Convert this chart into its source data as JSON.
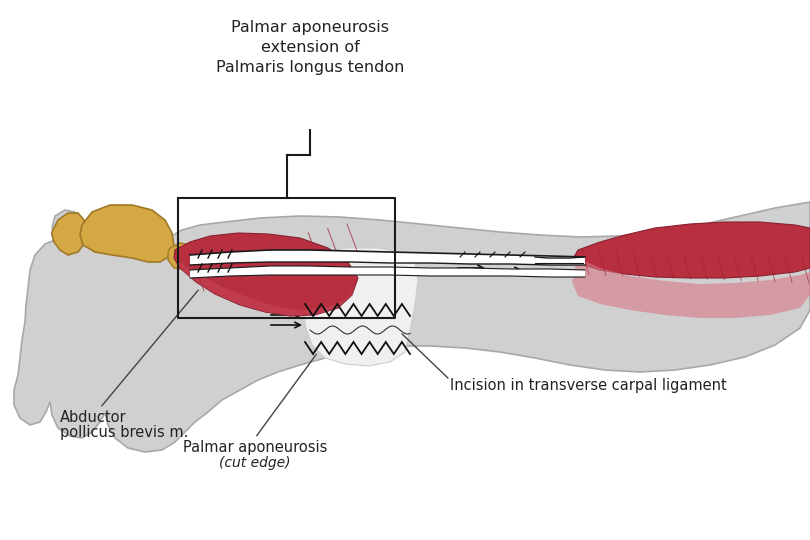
{
  "background_color": "#ffffff",
  "hand_fill": "#d0d0d0",
  "hand_fill2": "#c8c8c8",
  "hand_stroke": "#a8a8a8",
  "bone_fill": "#d4a843",
  "bone_stroke": "#a07828",
  "muscle_dark": "#b83040",
  "muscle_mid": "#c84858",
  "muscle_light": "#e09098",
  "tendon_white": "#f0f0f0",
  "tendon_dark": "#1a1a1a",
  "label_color": "#222222",
  "annot_line_color": "#444444",
  "box_color": "#1a1a1a",
  "labels": {
    "top_label": "Palmar aponeurosis\nextension of\nPalmaris longus tendon",
    "abductor1": "Abductor",
    "abductor2": "pollicus brevis m.",
    "palmar_apon": "Palmar aponeurosis",
    "cut_edge": "(cut edge)",
    "incision": "Incision in transverse carpal ligament"
  },
  "figsize": [
    8.1,
    5.4
  ],
  "dpi": 100
}
